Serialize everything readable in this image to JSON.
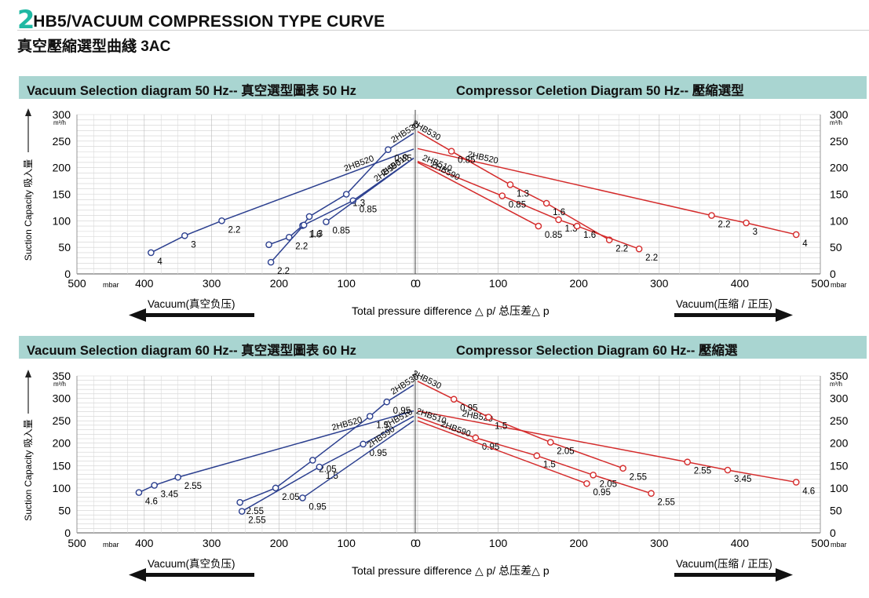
{
  "header": {
    "number": "2",
    "title": "HB5/VACUUM COMPRESSION TYPE CURVE",
    "subtitle": "真空壓縮選型曲綫 3AC"
  },
  "panels": [
    {
      "left_title": "Vacuum Selection diagram 50 Hz-- 真空選型圖表 50 Hz",
      "right_title": "Compressor Celetion Diagram 50 Hz-- 壓縮選型",
      "y_ticks": [
        "0",
        "50",
        "100",
        "150",
        "200",
        "250",
        "300"
      ],
      "x_left_ticks": [
        "500",
        "400",
        "300",
        "200",
        "100",
        "0"
      ],
      "x_right_ticks": [
        "0",
        "100",
        "200",
        "300",
        "400",
        "500"
      ],
      "bottom_label": "Total pressure difference △ p/ 总压差△ p",
      "vacuum_left": "Vacuum(真空负压)",
      "vacuum_right": "Vacuum(压缩 / 正压)"
    },
    {
      "left_title": "Vacuum Selection diagram 60 Hz-- 真空選型圖表 60 Hz",
      "right_title": "Compressor Selection Diagram 60 Hz-- 壓縮選",
      "y_ticks": [
        "0",
        "50",
        "100",
        "150",
        "200",
        "250",
        "300",
        "350"
      ],
      "x_left_ticks": [
        "500",
        "400",
        "300",
        "200",
        "100",
        "0"
      ],
      "x_right_ticks": [
        "0",
        "100",
        "200",
        "300",
        "400",
        "500"
      ],
      "bottom_label": "Total pressure difference △ p/ 总压差△ p",
      "vacuum_left": "Vacuum(真空负压)",
      "vacuum_right": "Vacuum(压缩 / 正压)"
    }
  ],
  "axis": {
    "unit_y": "m³/h",
    "unit_x": "mbar",
    "y_label": "Suction  Capacity 吸入量"
  },
  "colors": {
    "vacuum": "#2b3f8f",
    "compressor": "#d42b2b",
    "band": "#a9d5d1",
    "accent": "#1fb8a3"
  },
  "chart_data": [
    {
      "type": "line",
      "title": "Vacuum Selection diagram 50 Hz-- 真空選型圖表 50 Hz",
      "xlabel": "mbar",
      "ylabel": "Suction Capacity m³/h",
      "xlim": [
        500,
        0
      ],
      "ylim": [
        0,
        300
      ],
      "x_reversed": true,
      "series": [
        {
          "name": "2HB520",
          "points": [
            [
              0,
              235
            ],
            [
              285,
              100
            ],
            [
              340,
              72
            ],
            [
              390,
              40
            ]
          ],
          "labels": [
            "",
            "2.2",
            "3",
            "4"
          ]
        },
        {
          "name": "2HB530",
          "points": [
            [
              0,
              265
            ],
            [
              38,
              234
            ],
            [
              100,
              150
            ],
            [
              155,
              108
            ],
            [
              165,
              91
            ],
            [
              185,
              69
            ],
            [
              215,
              55
            ]
          ],
          "labels": [
            "",
            "0.85",
            "1.3",
            "",
            "1.6",
            "2.2",
            ""
          ]
        },
        {
          "name": "2HB510",
          "points": [
            [
              0,
              218
            ],
            [
              90,
              138
            ],
            [
              163,
              92
            ],
            [
              212,
              22
            ]
          ],
          "labels": [
            "",
            "0.85",
            "1.3",
            "2.2"
          ]
        },
        {
          "name": "2HB590",
          "points": [
            [
              0,
              218
            ],
            [
              130,
              98
            ]
          ],
          "labels": [
            "",
            "0.85"
          ]
        }
      ]
    },
    {
      "type": "line",
      "title": "Compressor Celetion Diagram 50 Hz-- 壓縮選型",
      "xlabel": "mbar",
      "ylabel": "Suction Capacity m³/h",
      "xlim": [
        0,
        500
      ],
      "ylim": [
        0,
        300
      ],
      "series": [
        {
          "name": "2HB520",
          "points": [
            [
              0,
              236
            ],
            [
              365,
              110
            ],
            [
              408,
              96
            ],
            [
              470,
              74
            ]
          ],
          "labels": [
            "",
            "2.2",
            "3",
            "4"
          ]
        },
        {
          "name": "2HB530",
          "points": [
            [
              0,
              268
            ],
            [
              42,
              231
            ],
            [
              115,
              168
            ],
            [
              160,
              133
            ],
            [
              238,
              64
            ]
          ],
          "labels": [
            "",
            "0.85",
            "1.3",
            "1.6",
            "2.2"
          ]
        },
        {
          "name": "2HB510",
          "points": [
            [
              0,
              212
            ],
            [
              105,
              147
            ],
            [
              175,
              102
            ],
            [
              198,
              90
            ],
            [
              275,
              47
            ]
          ],
          "labels": [
            "",
            "0.85",
            "1.3",
            "1.6",
            "2.2"
          ]
        },
        {
          "name": "2HB590",
          "points": [
            [
              0,
              210
            ],
            [
              150,
              90
            ]
          ],
          "labels": [
            "",
            "0.85"
          ]
        }
      ]
    },
    {
      "type": "line",
      "title": "Vacuum Selection diagram 60 Hz-- 真空選型圖表 60 Hz",
      "xlabel": "mbar",
      "ylabel": "Suction Capacity m³/h",
      "xlim": [
        500,
        0
      ],
      "ylim": [
        0,
        350
      ],
      "x_reversed": true,
      "series": [
        {
          "name": "2HB520",
          "points": [
            [
              0,
              272
            ],
            [
              350,
              124
            ],
            [
              385,
              106
            ],
            [
              408,
              90
            ]
          ],
          "labels": [
            "",
            "2.55",
            "3.45",
            "4.6"
          ]
        },
        {
          "name": "2HB530",
          "points": [
            [
              0,
              330
            ],
            [
              40,
              292
            ],
            [
              65,
              260
            ],
            [
              150,
              162
            ],
            [
              205,
              100
            ],
            [
              258,
              68
            ]
          ],
          "labels": [
            "",
            "0.95",
            "1.5",
            "2.05",
            "2.05",
            "2.55"
          ]
        },
        {
          "name": "2HB510",
          "points": [
            [
              0,
              260
            ],
            [
              75,
              198
            ],
            [
              140,
              147
            ],
            [
              255,
              48
            ]
          ],
          "labels": [
            "",
            "0.95",
            "1.5",
            "2.55"
          ]
        },
        {
          "name": "2HB590",
          "points": [
            [
              0,
              250
            ],
            [
              165,
              78
            ]
          ],
          "labels": [
            "",
            "0.95"
          ]
        }
      ]
    },
    {
      "type": "line",
      "title": "Compressor Selection Diagram 60 Hz-- 壓縮選",
      "xlabel": "mbar",
      "ylabel": "Suction Capacity m³/h",
      "xlim": [
        0,
        500
      ],
      "ylim": [
        0,
        350
      ],
      "series": [
        {
          "name": "2HB520",
          "points": [
            [
              0,
              272
            ],
            [
              335,
              158
            ],
            [
              385,
              140
            ],
            [
              470,
              113
            ]
          ],
          "labels": [
            "",
            "2.55",
            "3.45",
            "4.6"
          ]
        },
        {
          "name": "2HB530",
          "points": [
            [
              0,
              338
            ],
            [
              45,
              298
            ],
            [
              88,
              258
            ],
            [
              165,
              202
            ],
            [
              255,
              144
            ]
          ],
          "labels": [
            "",
            "0.95",
            "1.5",
            "2.05",
            "2.55"
          ]
        },
        {
          "name": "2HB510",
          "points": [
            [
              0,
              258
            ],
            [
              72,
              212
            ],
            [
              148,
              172
            ],
            [
              218,
              129
            ],
            [
              290,
              88
            ]
          ],
          "labels": [
            "",
            "0.95",
            "1.5",
            "2.05",
            "2.55"
          ]
        },
        {
          "name": "2HB590",
          "points": [
            [
              0,
              250
            ],
            [
              210,
              110
            ]
          ],
          "labels": [
            "",
            "0.95"
          ]
        }
      ]
    }
  ]
}
